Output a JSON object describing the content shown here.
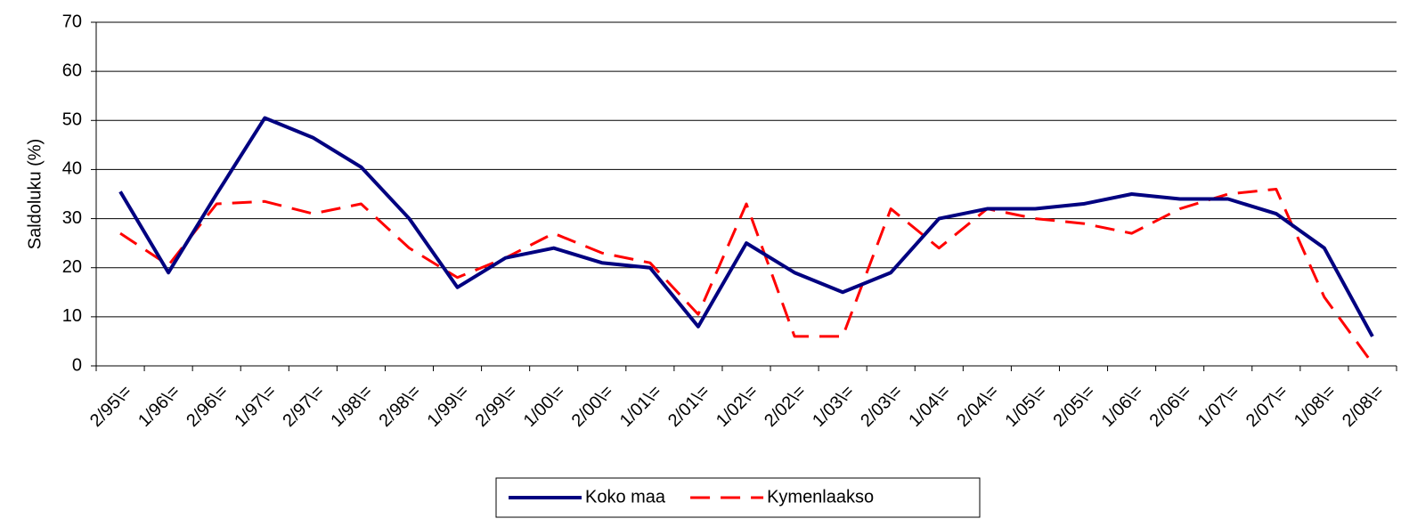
{
  "chart_data": {
    "type": "line",
    "y_label": "Saldoluku (%)",
    "categories": [
      "2/95\\=",
      "1/96\\=",
      "2/96\\=",
      "1/97\\=",
      "2/97\\=",
      "1/98\\=",
      "2/98\\=",
      "1/99\\=",
      "2/99\\=",
      "1/00\\=",
      "2/00\\=",
      "1/01\\=",
      "2/01\\=",
      "1/02\\=",
      "2/02\\=",
      "1/03\\=",
      "2/03\\=",
      "1/04\\=",
      "2/04\\=",
      "1/05\\=",
      "2/05\\=",
      "1/06\\=",
      "2/06\\=",
      "1/07\\=",
      "2/07\\=",
      "1/08\\=",
      "2/08\\="
    ],
    "series": [
      {
        "name": "Koko maa",
        "color": "#000080",
        "dashed": false,
        "values": [
          35.5,
          19,
          35,
          50.5,
          46.5,
          40.5,
          30,
          16,
          22,
          24,
          21,
          20,
          8,
          25,
          19,
          15,
          19,
          30,
          32,
          32,
          33,
          35,
          34,
          34,
          31,
          24,
          6
        ]
      },
      {
        "name": "Kymenlaakso",
        "color": "#ff0000",
        "dashed": true,
        "values": [
          27,
          20.5,
          33,
          33.5,
          31,
          33,
          24,
          18,
          22,
          27,
          23,
          21,
          10.5,
          33,
          6,
          6,
          32,
          24,
          32,
          30,
          29,
          27,
          32,
          35,
          36,
          14,
          0.5
        ]
      }
    ],
    "ylim": [
      0,
      70
    ],
    "yticks": [
      0,
      10,
      20,
      30,
      40,
      50,
      60,
      70
    ],
    "grid": true,
    "legend": "bottom"
  }
}
